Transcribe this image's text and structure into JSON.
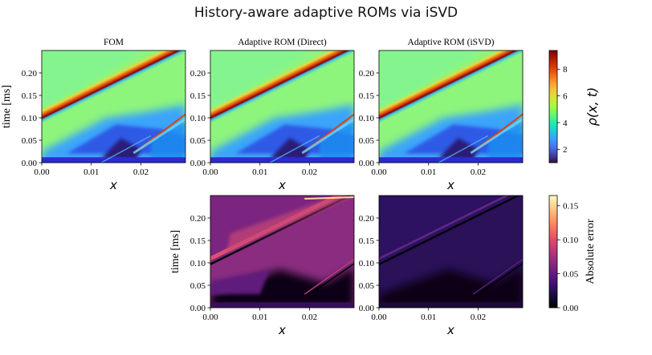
{
  "figure_title": "History-aware adaptive ROMs via iSVD",
  "chart_data": [
    {
      "type": "heatmap",
      "title": "FOM",
      "xlabel": "x",
      "ylabel": "time [ms]",
      "xlim": [
        0,
        0.029
      ],
      "ylim": [
        0,
        0.25
      ],
      "xticks": [
        "0.00",
        "0.01",
        "0.02"
      ],
      "yticks": [
        "0.00",
        "0.05",
        "0.10",
        "0.15",
        "0.20"
      ],
      "colormap": "turbo",
      "field": "density"
    },
    {
      "type": "heatmap",
      "title": "Adaptive ROM (Direct)",
      "xlabel": "x",
      "ylabel": "",
      "xlim": [
        0,
        0.029
      ],
      "ylim": [
        0,
        0.25
      ],
      "xticks": [
        "0.00",
        "0.01",
        "0.02"
      ],
      "yticks": [
        "0.00",
        "0.05",
        "0.10",
        "0.15",
        "0.20"
      ],
      "colormap": "turbo",
      "field": "density"
    },
    {
      "type": "heatmap",
      "title": "Adaptive ROM (iSVD)",
      "xlabel": "x",
      "ylabel": "",
      "xlim": [
        0,
        0.029
      ],
      "ylim": [
        0,
        0.25
      ],
      "xticks": [
        "0.00",
        "0.01",
        "0.02"
      ],
      "yticks": [
        "0.00",
        "0.05",
        "0.10",
        "0.15",
        "0.20"
      ],
      "colormap": "turbo",
      "field": "density"
    },
    {
      "type": "heatmap",
      "title": "",
      "xlabel": "x",
      "ylabel": "time [ms]",
      "xlim": [
        0,
        0.029
      ],
      "ylim": [
        0,
        0.25
      ],
      "xticks": [
        "0.00",
        "0.01",
        "0.02"
      ],
      "yticks": [
        "0.00",
        "0.05",
        "0.10",
        "0.15",
        "0.20"
      ],
      "colormap": "magma",
      "field": "error_direct"
    },
    {
      "type": "heatmap",
      "title": "",
      "xlabel": "x",
      "ylabel": "",
      "xlim": [
        0,
        0.029
      ],
      "ylim": [
        0,
        0.25
      ],
      "xticks": [
        "0.00",
        "0.01",
        "0.02"
      ],
      "yticks": [
        "0.00",
        "0.05",
        "0.10",
        "0.15",
        "0.20"
      ],
      "colormap": "magma",
      "field": "error_isvd"
    }
  ],
  "colorbars": {
    "density": {
      "label": "ρ(x, t)",
      "range": [
        1,
        9.4
      ],
      "ticks": [
        "2",
        "4",
        "6",
        "8"
      ],
      "tick_values": [
        2,
        4,
        6,
        8
      ],
      "colormap": "turbo"
    },
    "error": {
      "label": "Absolute error",
      "range": [
        0,
        0.165
      ],
      "ticks": [
        "0.00",
        "0.05",
        "0.10",
        "0.15"
      ],
      "tick_values": [
        0,
        0.05,
        0.1,
        0.15
      ],
      "colormap": "magma"
    }
  }
}
